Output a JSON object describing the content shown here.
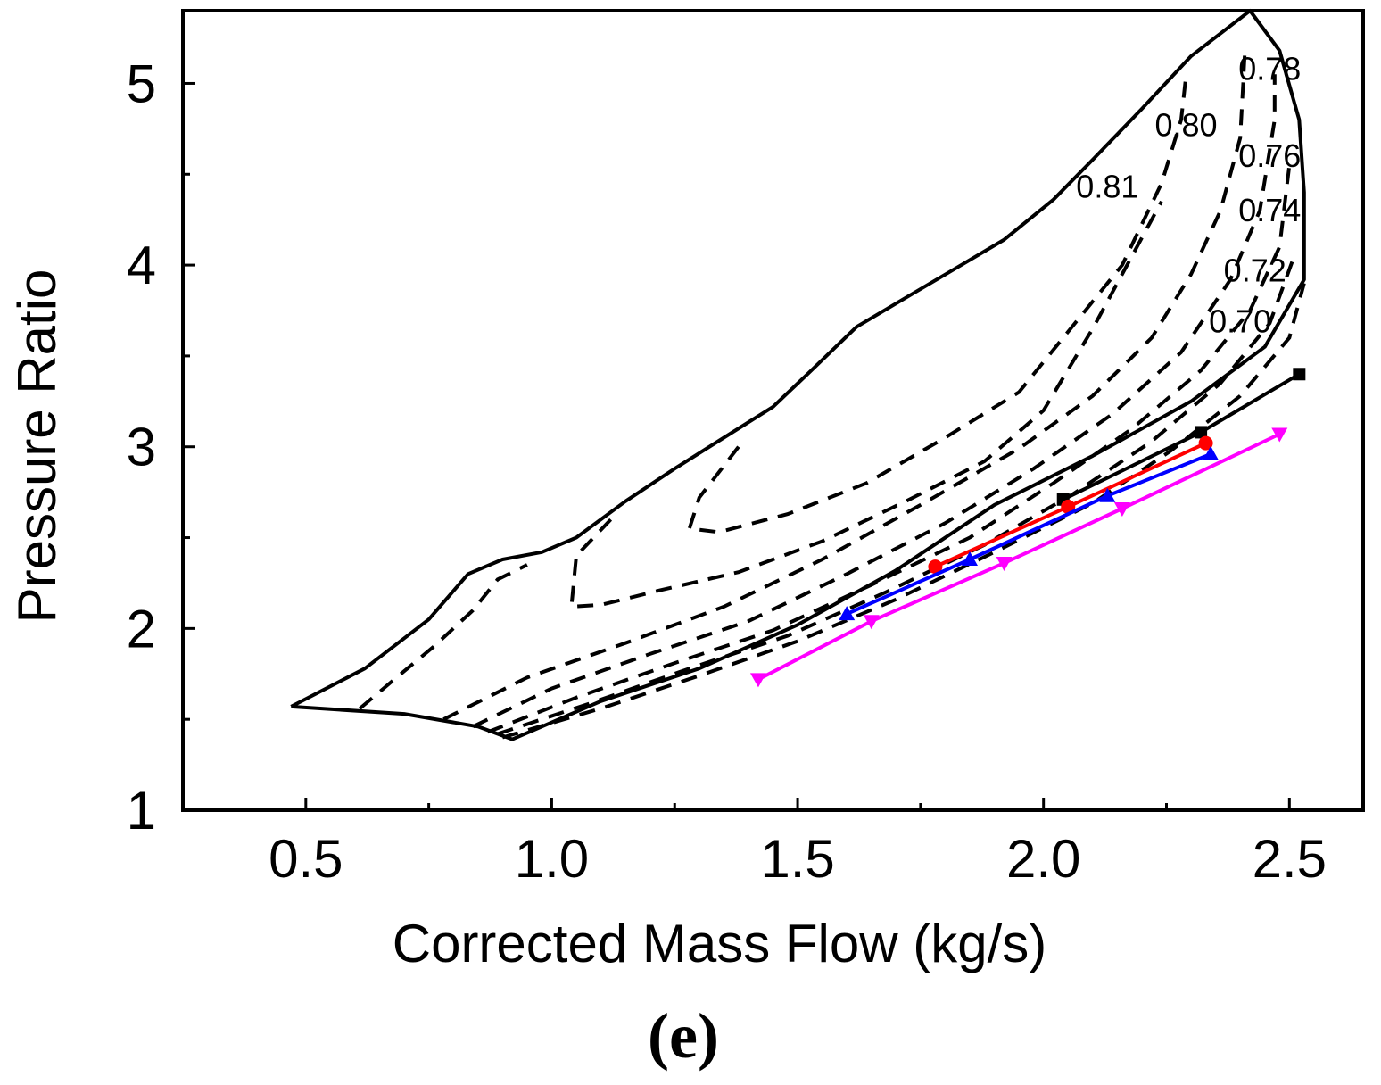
{
  "chart_data": {
    "type": "line",
    "title": "",
    "panel_label": "(e)",
    "xlabel": "Corrected Mass Flow (kg/s)",
    "ylabel": "Pressure Ratio",
    "xlim": [
      0.25,
      2.65
    ],
    "ylim": [
      1.0,
      5.4
    ],
    "x_ticks": [
      0.5,
      1.0,
      1.5,
      2.0,
      2.5
    ],
    "x_tick_labels": [
      "0.5",
      "1.0",
      "1.5",
      "2.0",
      "2.5"
    ],
    "y_ticks": [
      1,
      2,
      3,
      4,
      5
    ],
    "y_tick_labels": [
      "1",
      "2",
      "3",
      "4",
      "5"
    ],
    "boundary": {
      "name": "map-boundary",
      "color": "#000000",
      "points": [
        [
          0.47,
          1.57
        ],
        [
          0.62,
          1.78
        ],
        [
          0.75,
          2.05
        ],
        [
          0.83,
          2.3
        ],
        [
          0.9,
          2.38
        ],
        [
          0.98,
          2.42
        ],
        [
          1.05,
          2.5
        ],
        [
          1.15,
          2.7
        ],
        [
          1.25,
          2.88
        ],
        [
          1.35,
          3.05
        ],
        [
          1.45,
          3.22
        ],
        [
          1.52,
          3.4
        ],
        [
          1.62,
          3.66
        ],
        [
          1.72,
          3.82
        ],
        [
          1.82,
          3.98
        ],
        [
          1.92,
          4.14
        ],
        [
          2.02,
          4.36
        ],
        [
          2.1,
          4.58
        ],
        [
          2.2,
          4.86
        ],
        [
          2.3,
          5.15
        ],
        [
          2.42,
          5.4
        ],
        [
          2.48,
          5.18
        ],
        [
          2.52,
          4.8
        ],
        [
          2.53,
          4.4
        ],
        [
          2.53,
          3.92
        ],
        [
          2.45,
          3.55
        ],
        [
          2.3,
          3.25
        ],
        [
          2.1,
          2.95
        ],
        [
          1.9,
          2.68
        ],
        [
          1.7,
          2.32
        ],
        [
          1.5,
          2.02
        ],
        [
          1.3,
          1.78
        ],
        [
          1.1,
          1.6
        ],
        [
          0.92,
          1.39
        ],
        [
          0.85,
          1.46
        ],
        [
          0.7,
          1.53
        ],
        [
          0.47,
          1.57
        ]
      ]
    },
    "efficiency_contours": [
      {
        "name": "contour-0.81",
        "label": "0.81",
        "label_at": [
          2.13,
          4.37
        ],
        "points": [
          [
            0.61,
            1.56
          ],
          [
            0.68,
            1.72
          ],
          [
            0.76,
            1.9
          ],
          [
            0.84,
            2.1
          ],
          [
            0.89,
            2.27
          ],
          [
            0.95,
            2.35
          ]
        ]
      },
      {
        "name": "contour-0.81-b",
        "label": "",
        "points": [
          [
            1.12,
            2.6
          ],
          [
            1.05,
            2.4
          ],
          [
            1.04,
            2.12
          ],
          [
            1.1,
            2.13
          ],
          [
            1.22,
            2.21
          ],
          [
            1.38,
            2.31
          ],
          [
            1.55,
            2.48
          ],
          [
            1.72,
            2.7
          ],
          [
            1.88,
            2.92
          ],
          [
            2.0,
            3.2
          ],
          [
            2.1,
            3.65
          ],
          [
            2.18,
            4.05
          ],
          [
            2.24,
            4.35
          ]
        ]
      },
      {
        "name": "contour-0.80",
        "label": "0.80",
        "label_at": [
          2.29,
          4.71
        ],
        "points": [
          [
            1.38,
            3.0
          ],
          [
            1.3,
            2.72
          ],
          [
            1.28,
            2.55
          ],
          [
            1.34,
            2.53
          ],
          [
            1.48,
            2.63
          ],
          [
            1.64,
            2.8
          ],
          [
            1.8,
            3.05
          ],
          [
            1.95,
            3.3
          ],
          [
            2.07,
            3.7
          ],
          [
            2.16,
            4.0
          ],
          [
            2.24,
            4.45
          ],
          [
            2.28,
            4.8
          ],
          [
            2.29,
            5.05
          ]
        ]
      },
      {
        "name": "contour-0.78",
        "label": "0.78",
        "label_at": [
          2.46,
          5.02
        ],
        "points": [
          [
            0.78,
            1.5
          ],
          [
            0.95,
            1.73
          ],
          [
            1.15,
            1.92
          ],
          [
            1.35,
            2.12
          ],
          [
            1.55,
            2.38
          ],
          [
            1.75,
            2.68
          ],
          [
            1.95,
            2.99
          ],
          [
            2.1,
            3.28
          ],
          [
            2.22,
            3.6
          ],
          [
            2.3,
            3.95
          ],
          [
            2.36,
            4.3
          ],
          [
            2.4,
            4.7
          ],
          [
            2.41,
            5.2
          ]
        ]
      },
      {
        "name": "contour-0.76",
        "label": "0.76",
        "label_at": [
          2.46,
          4.54
        ],
        "points": [
          [
            0.84,
            1.46
          ],
          [
            1.0,
            1.67
          ],
          [
            1.2,
            1.86
          ],
          [
            1.4,
            2.04
          ],
          [
            1.6,
            2.3
          ],
          [
            1.8,
            2.58
          ],
          [
            1.98,
            2.88
          ],
          [
            2.14,
            3.18
          ],
          [
            2.28,
            3.52
          ],
          [
            2.38,
            3.92
          ],
          [
            2.44,
            4.3
          ],
          [
            2.47,
            4.8
          ],
          [
            2.47,
            5.05
          ]
        ]
      },
      {
        "name": "contour-0.74",
        "label": "0.74",
        "label_at": [
          2.46,
          4.24
        ],
        "points": [
          [
            0.87,
            1.43
          ],
          [
            1.05,
            1.62
          ],
          [
            1.25,
            1.81
          ],
          [
            1.45,
            1.99
          ],
          [
            1.65,
            2.24
          ],
          [
            1.85,
            2.5
          ],
          [
            2.02,
            2.8
          ],
          [
            2.18,
            3.1
          ],
          [
            2.32,
            3.42
          ],
          [
            2.42,
            3.75
          ],
          [
            2.48,
            4.1
          ],
          [
            2.5,
            4.55
          ]
        ]
      },
      {
        "name": "contour-0.72",
        "label": "0.72",
        "label_at": [
          2.43,
          3.91
        ],
        "points": [
          [
            0.89,
            1.42
          ],
          [
            1.08,
            1.59
          ],
          [
            1.28,
            1.78
          ],
          [
            1.48,
            1.96
          ],
          [
            1.68,
            2.2
          ],
          [
            1.88,
            2.46
          ],
          [
            2.06,
            2.74
          ],
          [
            2.22,
            3.03
          ],
          [
            2.36,
            3.35
          ],
          [
            2.46,
            3.68
          ],
          [
            2.51,
            4.05
          ]
        ]
      },
      {
        "name": "contour-0.70",
        "label": "0.70",
        "label_at": [
          2.4,
          3.63
        ],
        "points": [
          [
            0.9,
            1.4
          ],
          [
            1.1,
            1.56
          ],
          [
            1.3,
            1.74
          ],
          [
            1.5,
            1.93
          ],
          [
            1.7,
            2.16
          ],
          [
            1.9,
            2.42
          ],
          [
            2.1,
            2.69
          ],
          [
            2.26,
            2.98
          ],
          [
            2.4,
            3.28
          ],
          [
            2.5,
            3.6
          ],
          [
            2.53,
            3.9
          ]
        ]
      }
    ],
    "series": [
      {
        "name": "series-black",
        "color": "#000000",
        "marker": "square",
        "x": [
          2.04,
          2.32,
          2.52
        ],
        "y": [
          2.71,
          3.08,
          3.4
        ]
      },
      {
        "name": "series-red",
        "color": "#ff0000",
        "marker": "circle",
        "x": [
          1.78,
          2.05,
          2.33
        ],
        "y": [
          2.34,
          2.67,
          3.02
        ]
      },
      {
        "name": "series-blue",
        "color": "#0000ff",
        "marker": "triangle-up",
        "x": [
          1.6,
          1.85,
          2.13,
          2.34
        ],
        "y": [
          2.08,
          2.38,
          2.73,
          2.96
        ]
      },
      {
        "name": "series-magenta",
        "color": "#ff00ff",
        "marker": "triangle-down",
        "x": [
          1.42,
          1.65,
          1.92,
          2.16,
          2.48
        ],
        "y": [
          1.72,
          2.04,
          2.36,
          2.66,
          3.07
        ]
      }
    ]
  }
}
